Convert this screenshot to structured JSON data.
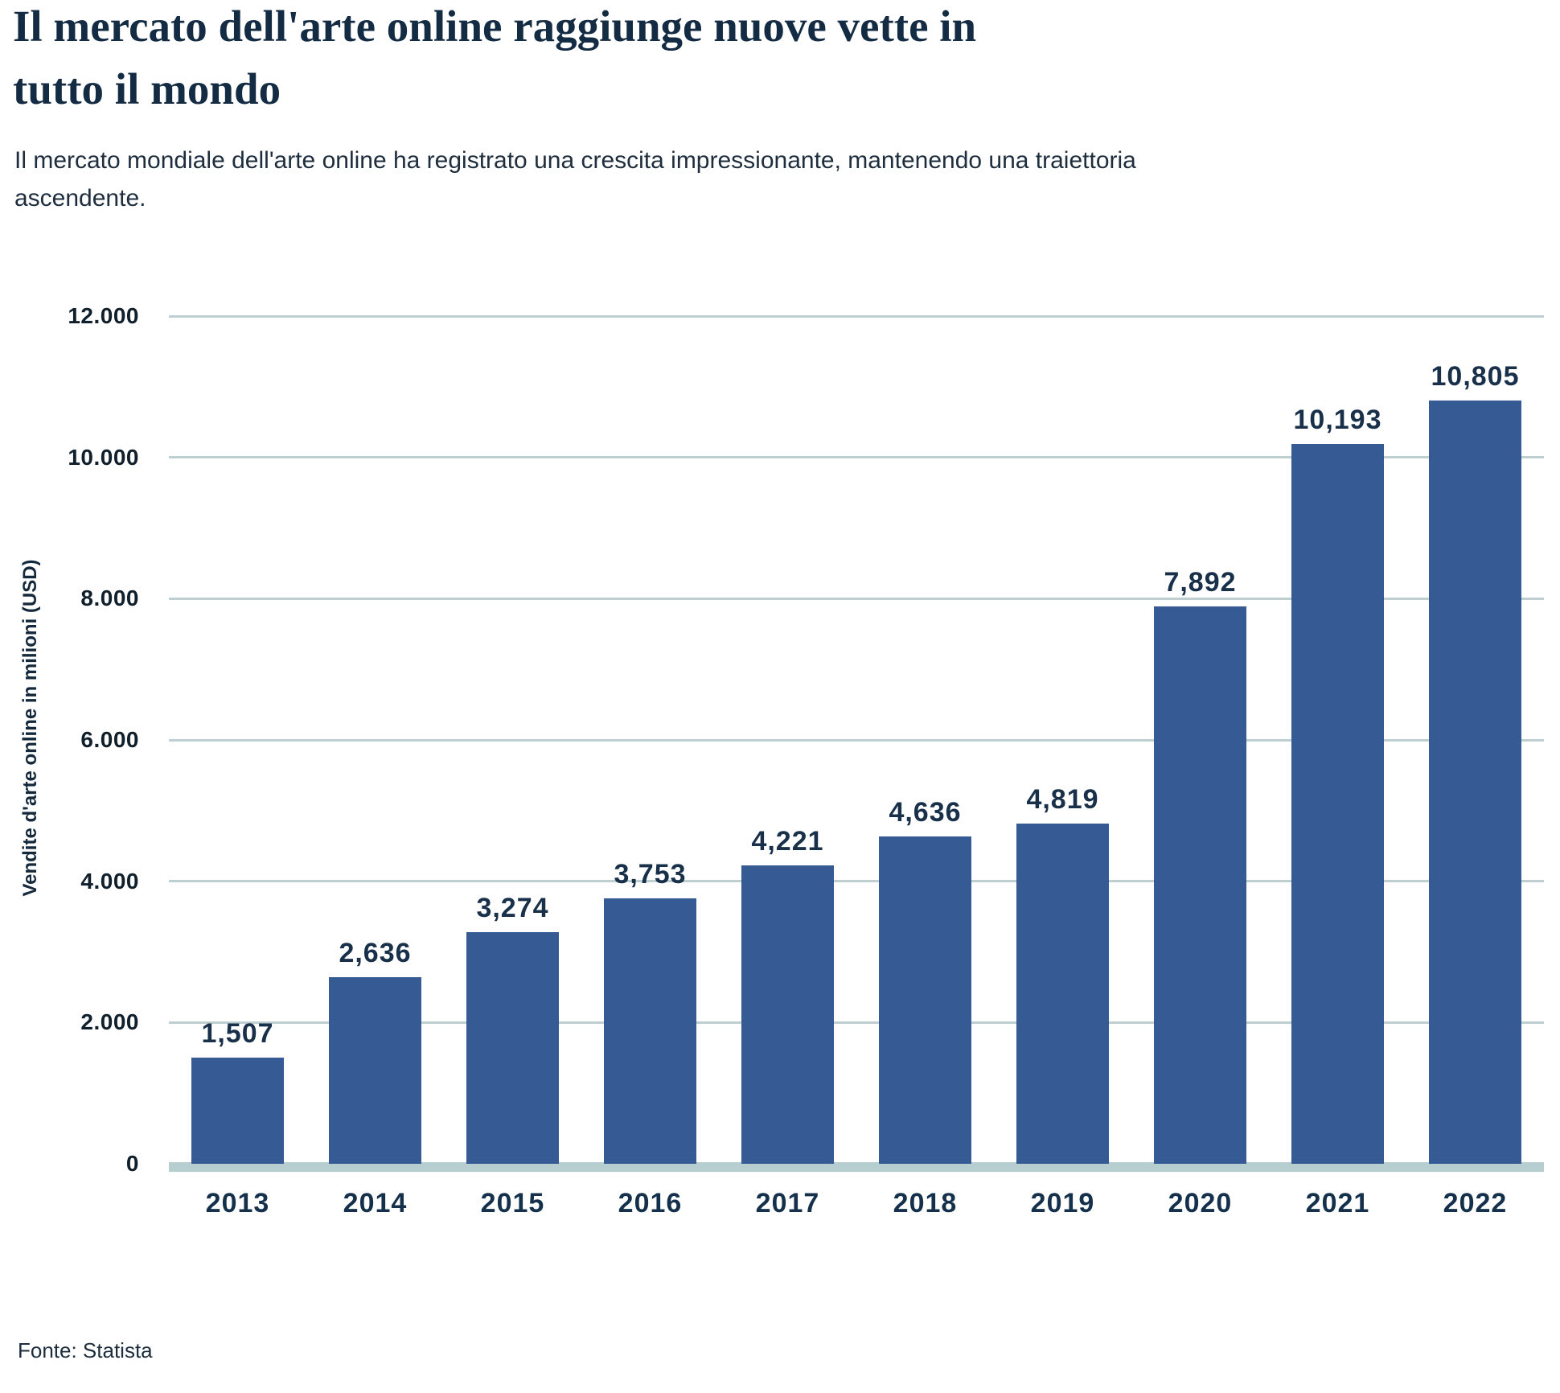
{
  "header": {
    "title": "Il mercato dell'arte online raggiunge nuove vette in tutto il mondo",
    "title_lines": [
      "Il mercato dell'arte online raggiunge nuove vette in",
      "tutto il mondo"
    ],
    "subtitle": "Il mercato mondiale dell'arte online ha registrato una crescita impressionante, mantenendo una traiettoria ascendente.",
    "subtitle_lines": [
      "Il mercato mondiale dell'arte online ha registrato una crescita impressionante, mantenendo una traiettoria",
      "ascendente."
    ]
  },
  "footer": {
    "source": "Fonte: Statista"
  },
  "chart_data": {
    "type": "bar",
    "title": "Il mercato dell'arte online raggiunge nuove vette in tutto il mondo",
    "subtitle": "Il mercato mondiale dell'arte online ha registrato una crescita impressionante, mantenendo una traiettoria ascendente.",
    "xlabel": "",
    "ylabel": "Vendite d'arte online in milioni (USD)",
    "source": "Fonte: Statista",
    "categories": [
      "2013",
      "2014",
      "2015",
      "2016",
      "2017",
      "2018",
      "2019",
      "2020",
      "2021",
      "2022"
    ],
    "values": [
      1507,
      2636,
      3274,
      3753,
      4221,
      4636,
      4819,
      7892,
      10193,
      10805
    ],
    "value_labels": [
      "1,507",
      "2,636",
      "3,274",
      "3,753",
      "4,221",
      "4,636",
      "4,819",
      "7,892",
      "10,193",
      "10,805"
    ],
    "y_ticks": [
      {
        "value": 0,
        "label": "0"
      },
      {
        "value": 2000,
        "label": "2.000"
      },
      {
        "value": 4000,
        "label": "4.000"
      },
      {
        "value": 6000,
        "label": "6.000"
      },
      {
        "value": 8000,
        "label": "8.000"
      },
      {
        "value": 10000,
        "label": "10.000"
      },
      {
        "value": 12000,
        "label": "12.000"
      }
    ],
    "ylim": [
      0,
      12000
    ],
    "grid": true,
    "legend": "none",
    "colors": {
      "bar": "#365a93",
      "gridline": "#bdcfd0",
      "baseline": "#b7ced1",
      "ink": "#142c43"
    }
  }
}
